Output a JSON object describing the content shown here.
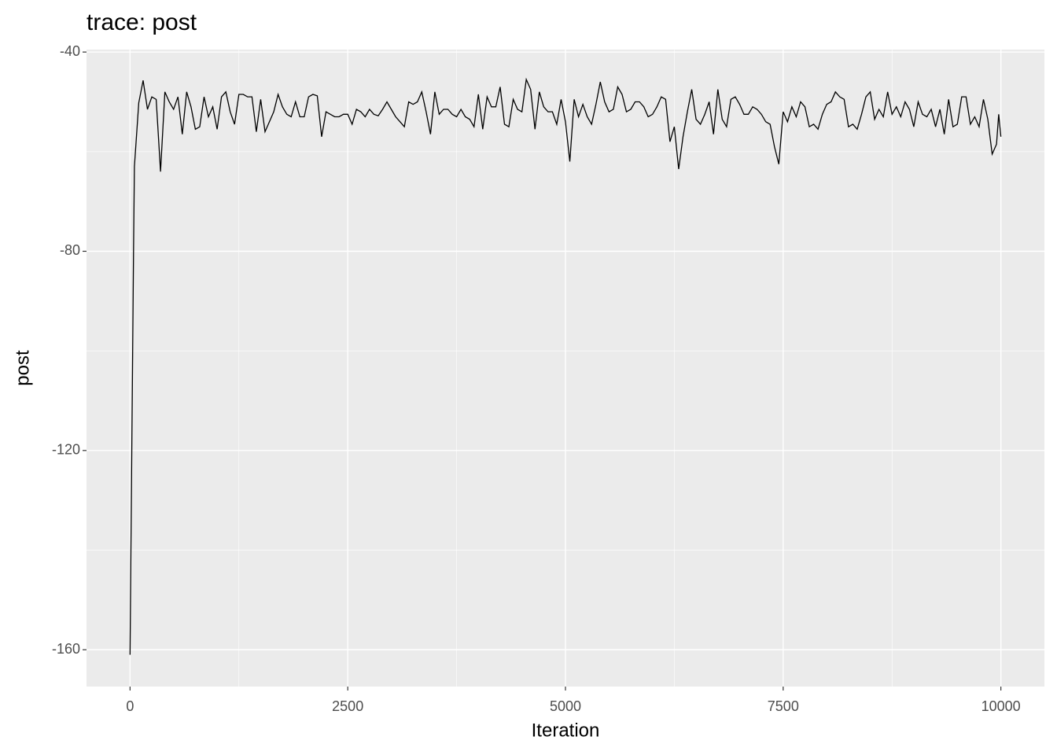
{
  "chart_data": {
    "type": "line",
    "title": "trace: post",
    "x_label": "Iteration",
    "y_label": "post",
    "xlim": [
      -500,
      10500
    ],
    "ylim": [
      -167.4,
      -39.5
    ],
    "xticks": [
      0,
      2500,
      5000,
      7500,
      10000
    ],
    "yticks": [
      -40,
      -80,
      -120,
      -160
    ],
    "grid": true,
    "series": [
      {
        "color": "#000000",
        "x": [
          0,
          10,
          20,
          30,
          40,
          50,
          100,
          150,
          200,
          250,
          300,
          350,
          400,
          450,
          500,
          550,
          600,
          650,
          700,
          750,
          800,
          850,
          900,
          950,
          1000,
          1050,
          1100,
          1150,
          1200,
          1250,
          1300,
          1350,
          1400,
          1450,
          1500,
          1550,
          1600,
          1650,
          1700,
          1750,
          1800,
          1850,
          1900,
          1950,
          2000,
          2050,
          2100,
          2150,
          2200,
          2250,
          2300,
          2350,
          2400,
          2450,
          2500,
          2550,
          2600,
          2650,
          2700,
          2750,
          2800,
          2850,
          2900,
          2950,
          3000,
          3050,
          3100,
          3150,
          3200,
          3250,
          3300,
          3350,
          3400,
          3450,
          3500,
          3550,
          3600,
          3650,
          3700,
          3750,
          3800,
          3850,
          3900,
          3950,
          4000,
          4050,
          4100,
          4150,
          4200,
          4250,
          4300,
          4350,
          4400,
          4450,
          4500,
          4550,
          4600,
          4650,
          4700,
          4750,
          4800,
          4850,
          4900,
          4950,
          5000,
          5050,
          5100,
          5150,
          5200,
          5250,
          5300,
          5350,
          5400,
          5450,
          5500,
          5550,
          5600,
          5650,
          5700,
          5750,
          5800,
          5850,
          5900,
          5950,
          6000,
          6050,
          6100,
          6150,
          6200,
          6250,
          6300,
          6350,
          6400,
          6450,
          6500,
          6550,
          6600,
          6650,
          6700,
          6750,
          6800,
          6850,
          6900,
          6950,
          7000,
          7050,
          7100,
          7150,
          7200,
          7250,
          7300,
          7350,
          7400,
          7450,
          7500,
          7550,
          7600,
          7650,
          7700,
          7750,
          7800,
          7850,
          7900,
          7950,
          8000,
          8050,
          8100,
          8150,
          8200,
          8250,
          8300,
          8350,
          8400,
          8450,
          8500,
          8550,
          8600,
          8650,
          8700,
          8750,
          8800,
          8850,
          8900,
          8950,
          9000,
          9050,
          9100,
          9150,
          9200,
          9250,
          9300,
          9350,
          9400,
          9450,
          9500,
          9550,
          9600,
          9650,
          9700,
          9750,
          9800,
          9850,
          9900,
          9950,
          9975,
          10000
        ],
        "values": [
          -161,
          -140,
          -120,
          -100,
          -80,
          -63,
          -50.2,
          -45.7,
          -51.5,
          -49,
          -49.5,
          -64,
          -48,
          -50,
          -51.5,
          -49,
          -56.5,
          -48,
          -51,
          -55.5,
          -55,
          -49,
          -53,
          -51,
          -55.5,
          -49,
          -48,
          -52,
          -54.5,
          -48.5,
          -48.5,
          -49,
          -49,
          -56,
          -49.5,
          -56,
          -54,
          -52,
          -48.5,
          -51,
          -52.5,
          -53,
          -50,
          -53,
          -53,
          -49,
          -48.5,
          -48.8,
          -57,
          -52,
          -52.5,
          -53,
          -53,
          -52.5,
          -52.5,
          -54.5,
          -51.5,
          -52,
          -53,
          -51.5,
          -52.5,
          -52.8,
          -51.5,
          -50,
          -51.5,
          -53,
          -54,
          -55,
          -50,
          -50.5,
          -50,
          -48,
          -52,
          -56.5,
          -48,
          -52.5,
          -51.5,
          -51.5,
          -52.5,
          -53,
          -51.5,
          -53,
          -53.5,
          -55,
          -48.5,
          -55.5,
          -49,
          -51,
          -51,
          -47,
          -54.5,
          -55,
          -49.5,
          -51.5,
          -52,
          -45.5,
          -47.5,
          -55.5,
          -48,
          -51,
          -52,
          -52,
          -54.5,
          -49.5,
          -54,
          -62,
          -49.5,
          -53,
          -50.5,
          -53,
          -54.5,
          -50.5,
          -46,
          -50,
          -52,
          -51.5,
          -47,
          -48.5,
          -52,
          -51.5,
          -50,
          -50,
          -51,
          -53,
          -52.5,
          -51,
          -49,
          -49.5,
          -58,
          -55,
          -63.5,
          -57,
          -52,
          -47.5,
          -53.5,
          -54.5,
          -52.5,
          -50,
          -56.5,
          -47.5,
          -53.5,
          -55,
          -49.5,
          -49,
          -50.5,
          -52.5,
          -52.5,
          -51,
          -51.5,
          -52.5,
          -54,
          -54.5,
          -59,
          -62.5,
          -52,
          -54,
          -51,
          -53,
          -50,
          -51,
          -55,
          -54.5,
          -55.5,
          -52.5,
          -50.5,
          -50,
          -48,
          -49,
          -49.5,
          -55,
          -54.5,
          -55.5,
          -52.5,
          -49,
          -48,
          -53.5,
          -51.5,
          -53,
          -48,
          -52.5,
          -51,
          -53,
          -50,
          -51.5,
          -55,
          -50,
          -52.5,
          -53,
          -51.5,
          -55,
          -51.5,
          -56.5,
          -49.5,
          -55,
          -54.5,
          -49,
          -49,
          -54.5,
          -53,
          -55,
          -49.5,
          -53.5,
          -60.5,
          -58.5,
          -52.5,
          -57
        ]
      }
    ]
  }
}
